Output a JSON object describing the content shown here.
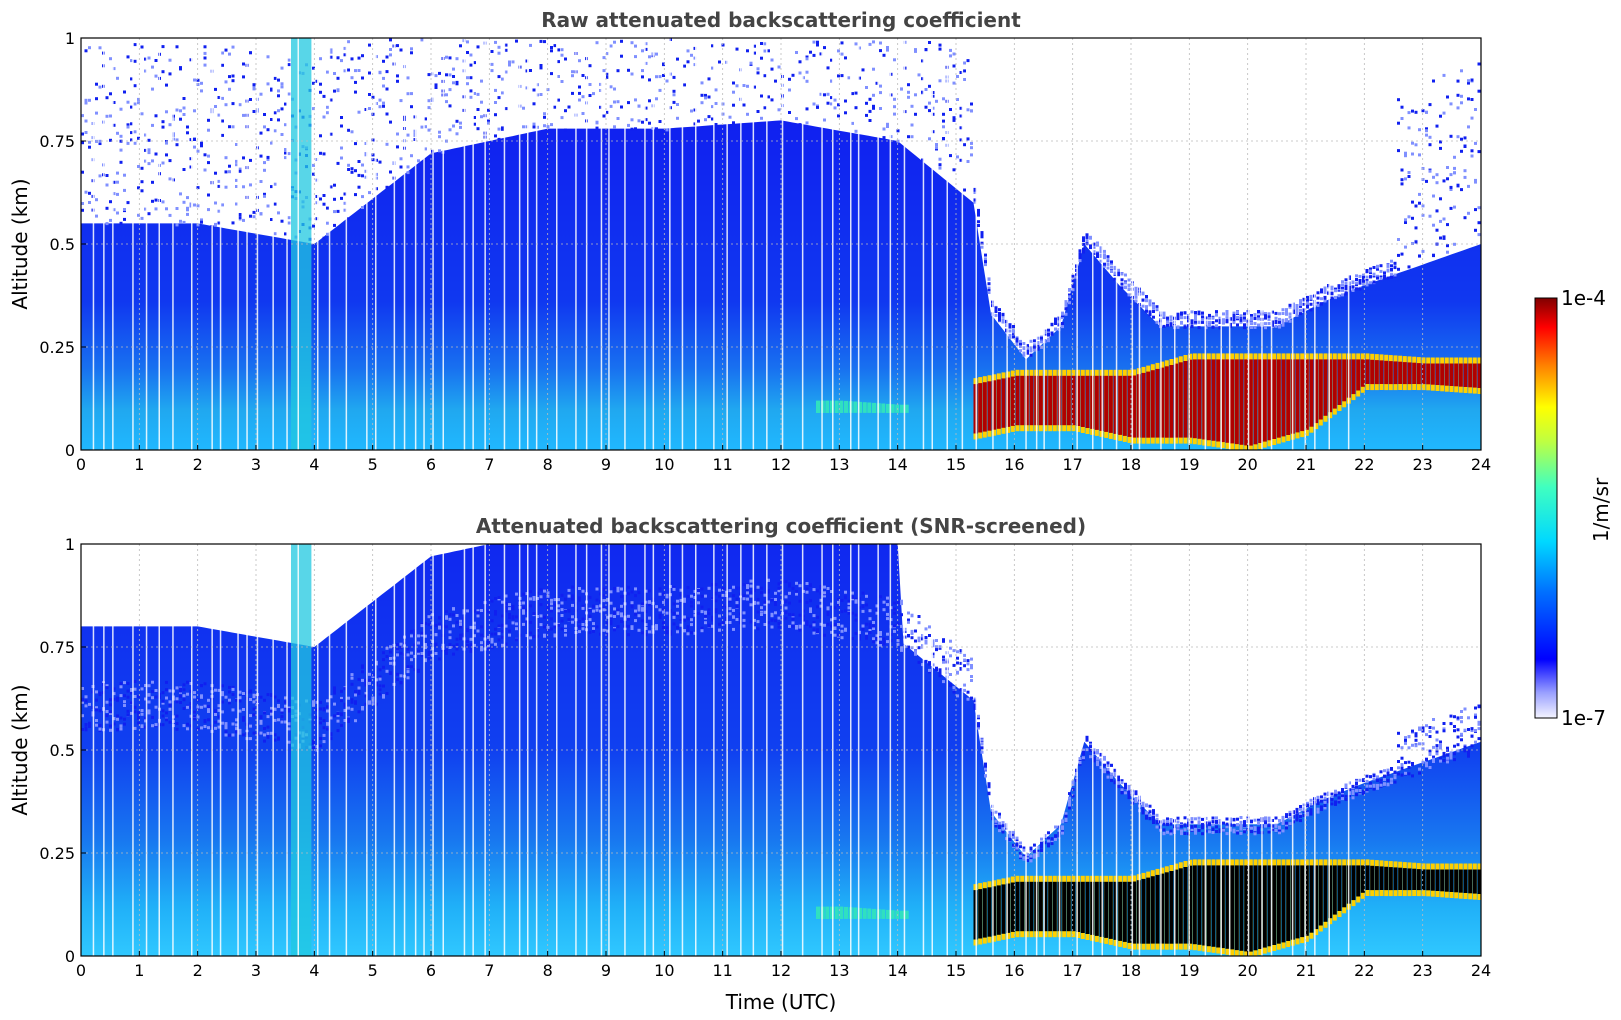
{
  "chart_data": [
    {
      "type": "heatmap",
      "title": "Raw attenuated backscattering coefficient",
      "xlabel": "",
      "ylabel": "Altitude (km)",
      "xlim": [
        0,
        24
      ],
      "ylim": [
        0,
        1
      ],
      "x_ticks": [
        "0",
        "1",
        "2",
        "3",
        "4",
        "5",
        "6",
        "7",
        "8",
        "9",
        "10",
        "11",
        "12",
        "13",
        "14",
        "15",
        "16",
        "17",
        "18",
        "19",
        "20",
        "21",
        "22",
        "23",
        "24"
      ],
      "y_ticks": [
        "0",
        "0.25",
        "0.5",
        "0.75",
        "1"
      ],
      "grid": true,
      "features": {
        "noise_top_km_by_hour": [
          [
            0,
            0.55
          ],
          [
            2,
            0.55
          ],
          [
            4,
            0.5
          ],
          [
            6,
            0.72
          ],
          [
            8,
            0.78
          ],
          [
            10,
            0.78
          ],
          [
            12,
            0.8
          ],
          [
            14,
            0.75
          ],
          [
            15.3,
            0.6
          ],
          [
            15.6,
            0.33
          ],
          [
            16.2,
            0.22
          ],
          [
            16.8,
            0.3
          ],
          [
            17.2,
            0.5
          ],
          [
            17.8,
            0.4
          ],
          [
            18.5,
            0.3
          ],
          [
            19.5,
            0.3
          ],
          [
            20.5,
            0.3
          ],
          [
            21.3,
            0.36
          ],
          [
            22,
            0.4
          ],
          [
            23,
            0.45
          ],
          [
            24,
            0.5
          ]
        ],
        "aerosol_layer_km": [
          [
            15.3,
            0.16,
            0.04
          ],
          [
            16,
            0.18,
            0.06
          ],
          [
            17,
            0.18,
            0.06
          ],
          [
            18,
            0.18,
            0.03
          ],
          [
            19,
            0.22,
            0.03
          ],
          [
            20,
            0.22,
            0.01
          ],
          [
            21,
            0.22,
            0.05
          ],
          [
            22,
            0.22,
            0.16
          ],
          [
            23,
            0.21,
            0.16
          ],
          [
            24,
            0.21,
            0.15
          ]
        ],
        "thin_layer_km": [
          [
            12.7,
            0.12,
            0.09
          ],
          [
            13,
            0.12,
            0.09
          ],
          [
            14,
            0.11,
            0.09
          ]
        ]
      }
    },
    {
      "type": "heatmap",
      "title": "Attenuated backscattering coefficient (SNR-screened)",
      "xlabel": "Time (UTC)",
      "ylabel": "Altitude (km)",
      "xlim": [
        0,
        24
      ],
      "ylim": [
        0,
        1
      ],
      "x_ticks": [
        "0",
        "1",
        "2",
        "3",
        "4",
        "5",
        "6",
        "7",
        "8",
        "9",
        "10",
        "11",
        "12",
        "13",
        "14",
        "15",
        "16",
        "17",
        "18",
        "19",
        "20",
        "21",
        "22",
        "23",
        "24"
      ],
      "y_ticks": [
        "0",
        "0.25",
        "0.5",
        "0.75",
        "1"
      ],
      "grid": true,
      "screened_color": "#000000"
    }
  ],
  "colorbar": {
    "label": "1/m/sr",
    "max_label": "1e-4",
    "min_label": "1e-7",
    "colormap": "jet",
    "scale": "log"
  }
}
